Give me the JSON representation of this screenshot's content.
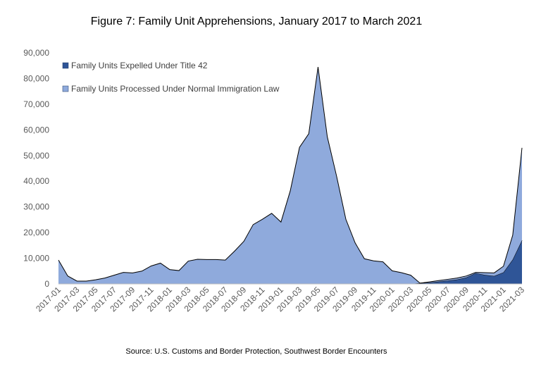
{
  "chart_data": {
    "type": "area",
    "stacked": true,
    "title": "Figure 7: Family Unit Apprehensions, January 2017 to March 2021",
    "source": "Source: U.S. Customs and Border Protection, Southwest Border Encounters",
    "ylim": [
      0,
      90000
    ],
    "yticks": [
      0,
      10000,
      20000,
      30000,
      40000,
      50000,
      60000,
      70000,
      80000,
      90000
    ],
    "ytick_labels": [
      "0",
      "10,000",
      "20,000",
      "30,000",
      "40,000",
      "50,000",
      "60,000",
      "70,000",
      "80,000",
      "90,000"
    ],
    "grid": false,
    "legend_position": "top-left",
    "x": [
      "2017-01",
      "2017-02",
      "2017-03",
      "2017-04",
      "2017-05",
      "2017-06",
      "2017-07",
      "2017-08",
      "2017-09",
      "2017-10",
      "2017-11",
      "2017-12",
      "2018-01",
      "2018-02",
      "2018-03",
      "2018-04",
      "2018-05",
      "2018-06",
      "2018-07",
      "2018-08",
      "2018-09",
      "2018-10",
      "2018-11",
      "2018-12",
      "2019-01",
      "2019-02",
      "2019-03",
      "2019-04",
      "2019-05",
      "2019-06",
      "2019-07",
      "2019-08",
      "2019-09",
      "2019-10",
      "2019-11",
      "2019-12",
      "2020-01",
      "2020-02",
      "2020-03",
      "2020-04",
      "2020-05",
      "2020-06",
      "2020-07",
      "2020-08",
      "2020-09",
      "2020-10",
      "2020-11",
      "2020-12",
      "2021-01",
      "2021-02",
      "2021-03"
    ],
    "x_tick_labels": [
      "2017-01",
      "2017-03",
      "2017-05",
      "2017-07",
      "2017-09",
      "2017-11",
      "2018-01",
      "2018-03",
      "2018-05",
      "2018-07",
      "2018-09",
      "2018-11",
      "2019-01",
      "2019-03",
      "2019-05",
      "2019-07",
      "2019-09",
      "2019-11",
      "2020-01",
      "2020-03",
      "2020-05",
      "2020-07",
      "2020-09",
      "2020-11",
      "2021-01",
      "2021-03"
    ],
    "series": [
      {
        "name": "Family Units Expelled Under Title 42",
        "color": "#2F5597",
        "values": [
          0,
          0,
          0,
          0,
          0,
          0,
          0,
          0,
          0,
          0,
          0,
          0,
          0,
          0,
          0,
          0,
          0,
          0,
          0,
          0,
          0,
          0,
          0,
          0,
          0,
          0,
          0,
          0,
          0,
          0,
          0,
          0,
          0,
          0,
          0,
          0,
          0,
          0,
          0,
          300,
          500,
          900,
          1300,
          1700,
          2500,
          4200,
          3500,
          3100,
          4500,
          9500,
          17000
        ]
      },
      {
        "name": "Family Units Processed Under Normal Immigration Law",
        "color": "#8FAADC",
        "values": [
          9300,
          3100,
          1100,
          1100,
          1600,
          2300,
          3400,
          4500,
          4300,
          5000,
          7000,
          8100,
          5600,
          5200,
          8900,
          9600,
          9500,
          9500,
          9300,
          12800,
          16600,
          23100,
          25200,
          27500,
          24100,
          36200,
          53200,
          58500,
          84500,
          57300,
          42000,
          25200,
          16000,
          9800,
          9000,
          8600,
          5100,
          4400,
          3400,
          0,
          300,
          400,
          500,
          600,
          600,
          300,
          900,
          1200,
          2400,
          9500,
          36000
        ]
      }
    ]
  }
}
